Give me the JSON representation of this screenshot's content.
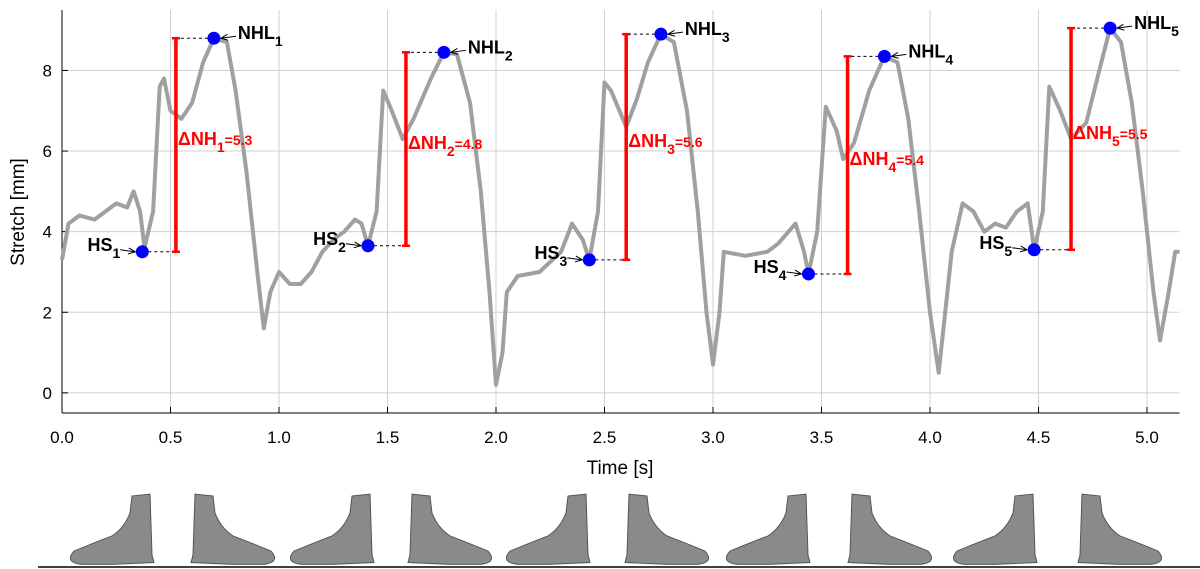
{
  "chart_data": {
    "type": "line",
    "x_label": "Time [s]",
    "y_label": "Stretch [mm]",
    "xlim": [
      0,
      5.15
    ],
    "ylim": [
      -0.5,
      9.5
    ],
    "xticks": [
      {
        "value": 0,
        "label": "0.0"
      },
      0.5,
      {
        "value": 1,
        "label": "1.0"
      },
      1.5,
      {
        "value": 2,
        "label": "2.0"
      },
      2.5,
      {
        "value": 3,
        "label": "3.0"
      },
      3.5,
      {
        "value": 4,
        "label": "4.0"
      },
      4.5,
      {
        "value": 5,
        "label": "5.0"
      }
    ],
    "yticks": [
      0,
      2,
      4,
      6,
      8
    ],
    "grid": true,
    "series": [
      {
        "color": "#a0a0a0",
        "x": [
          0.0,
          0.03,
          0.08,
          0.15,
          0.2,
          0.25,
          0.3,
          0.33,
          0.36,
          0.38,
          0.42,
          0.45,
          0.47,
          0.5,
          0.55,
          0.6,
          0.65,
          0.7,
          0.76,
          0.8,
          0.85,
          0.9,
          0.93,
          0.96,
          1.0,
          1.05,
          1.1,
          1.15,
          1.2,
          1.25,
          1.3,
          1.35,
          1.38,
          1.41,
          1.45,
          1.48,
          1.52,
          1.57,
          1.62,
          1.7,
          1.76,
          1.82,
          1.88,
          1.93,
          1.97,
          2.0,
          2.03,
          2.05,
          2.1,
          2.2,
          2.3,
          2.35,
          2.4,
          2.43,
          2.47,
          2.5,
          2.53,
          2.6,
          2.65,
          2.7,
          2.76,
          2.82,
          2.88,
          2.93,
          2.97,
          3.0,
          3.03,
          3.05,
          3.15,
          3.25,
          3.3,
          3.38,
          3.42,
          3.44,
          3.48,
          3.52,
          3.57,
          3.6,
          3.65,
          3.72,
          3.79,
          3.85,
          3.9,
          3.95,
          4.0,
          4.04,
          4.07,
          4.1,
          4.15,
          4.2,
          4.25,
          4.3,
          4.35,
          4.4,
          4.45,
          4.48,
          4.52,
          4.55,
          4.6,
          4.65,
          4.72,
          4.78,
          4.83,
          4.88,
          4.93,
          4.98,
          5.03,
          5.06,
          5.1,
          5.13,
          5.15
        ],
        "values": [
          3.3,
          4.2,
          4.4,
          4.3,
          4.5,
          4.7,
          4.6,
          5.0,
          4.5,
          3.6,
          4.5,
          7.6,
          7.8,
          7.0,
          6.8,
          7.2,
          8.2,
          8.8,
          8.7,
          7.5,
          5.5,
          3.0,
          1.6,
          2.5,
          3.0,
          2.7,
          2.7,
          3.0,
          3.5,
          3.8,
          4.0,
          4.3,
          4.2,
          3.65,
          4.5,
          7.5,
          7.0,
          6.3,
          6.8,
          7.8,
          8.45,
          8.4,
          7.2,
          5.0,
          2.5,
          0.2,
          1.0,
          2.5,
          2.9,
          3.0,
          3.5,
          4.2,
          3.8,
          3.3,
          4.5,
          7.7,
          7.5,
          6.6,
          7.3,
          8.2,
          8.9,
          8.7,
          7.0,
          4.5,
          2.0,
          0.7,
          2.0,
          3.5,
          3.4,
          3.5,
          3.7,
          4.2,
          3.5,
          2.95,
          4.0,
          7.1,
          6.5,
          5.8,
          6.2,
          7.5,
          8.35,
          8.2,
          6.8,
          4.5,
          2.0,
          0.5,
          2.0,
          3.5,
          4.7,
          4.5,
          4.0,
          4.2,
          4.1,
          4.5,
          4.7,
          3.55,
          4.5,
          7.6,
          7.0,
          6.3,
          6.7,
          8.0,
          9.05,
          8.7,
          7.2,
          5.0,
          2.5,
          1.3,
          2.5,
          3.5,
          3.5
        ]
      }
    ],
    "marker_color": "#0000ff",
    "bar_color": "#ff0000",
    "events": [
      {
        "hs_label": "HS",
        "nhl_label": "NHL",
        "delta_prefix": "ΔNH",
        "sub": "1",
        "delta_label": "=5.3",
        "hs_x": 0.37,
        "hs_y": 3.5,
        "nhl_x": 0.7,
        "nhl_y": 8.8,
        "bar_x": 0.525
      },
      {
        "hs_label": "HS",
        "nhl_label": "NHL",
        "delta_prefix": "ΔNH",
        "sub": "2",
        "delta_label": "=4.8",
        "hs_x": 1.41,
        "hs_y": 3.65,
        "nhl_x": 1.76,
        "nhl_y": 8.45,
        "bar_x": 1.585
      },
      {
        "hs_label": "HS",
        "nhl_label": "NHL",
        "delta_prefix": "ΔNH",
        "sub": "3",
        "delta_label": "=5.6",
        "hs_x": 2.43,
        "hs_y": 3.3,
        "nhl_x": 2.76,
        "nhl_y": 8.9,
        "bar_x": 2.6
      },
      {
        "hs_label": "HS",
        "nhl_label": "NHL",
        "delta_prefix": "ΔNH",
        "sub": "4",
        "delta_label": "=5.4",
        "hs_x": 3.44,
        "hs_y": 2.95,
        "nhl_x": 3.79,
        "nhl_y": 8.35,
        "bar_x": 3.62
      },
      {
        "hs_label": "HS",
        "nhl_label": "NHL",
        "delta_prefix": "ΔNH",
        "sub": "5",
        "delta_label": "=5.5",
        "hs_x": 4.48,
        "hs_y": 3.55,
        "nhl_x": 4.83,
        "nhl_y": 9.05,
        "bar_x": 4.65
      }
    ]
  }
}
